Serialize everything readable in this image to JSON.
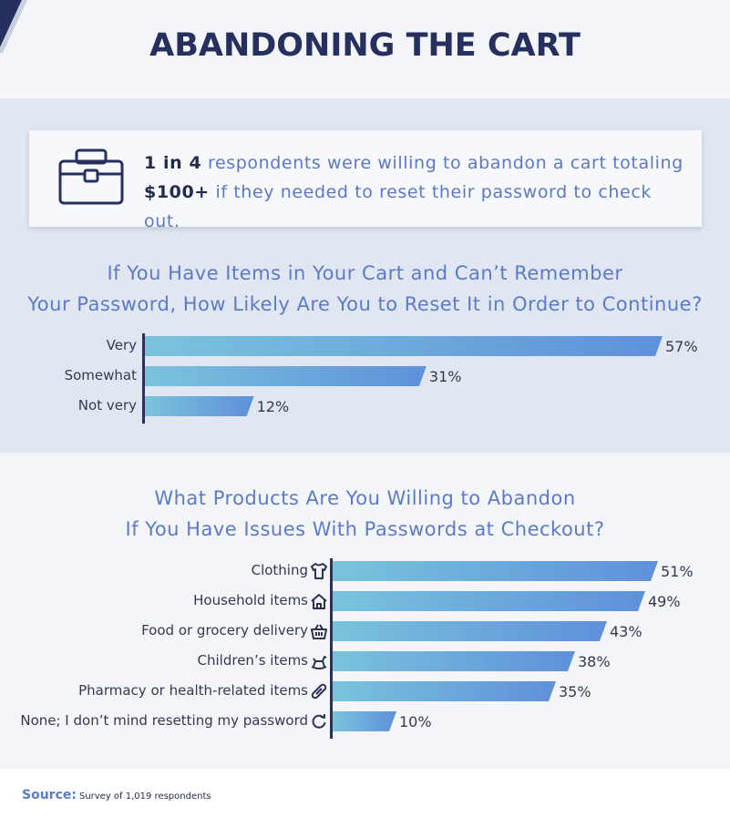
{
  "header": {
    "title": "ABANDONING THE CART",
    "accent_color": "#25305e"
  },
  "callout": {
    "icon": "briefcase-icon",
    "highlight1": "1 in 4",
    "text1": " respondents were willing to abandon a cart totaling ",
    "highlight2": "$100+",
    "text2": " if they needed to reset their password to check out."
  },
  "chart_data": [
    {
      "type": "bar",
      "orientation": "horizontal",
      "title": [
        "If You Have Items in Your Cart and Can’t Remember",
        "Your Password, How Likely Are You to Reset It in Order to Continue?"
      ],
      "categories": [
        "Very",
        "Somewhat",
        "Not very"
      ],
      "values": [
        57,
        31,
        12
      ],
      "value_labels": [
        "57%",
        "31%",
        "12%"
      ],
      "unit": "%",
      "xlim": [
        0,
        57
      ]
    },
    {
      "type": "bar",
      "orientation": "horizontal",
      "title": [
        "What Products Are You Willing to Abandon",
        "If You Have Issues With Passwords at Checkout?"
      ],
      "categories": [
        "Clothing",
        "Household items",
        "Food or grocery delivery",
        "Children’s items",
        "Pharmacy or health-related items",
        "None; I don’t mind resetting my password"
      ],
      "icons": [
        "shirt-icon",
        "house-icon",
        "basket-icon",
        "rocking-horse-icon",
        "pill-icon",
        "refresh-icon"
      ],
      "values": [
        51,
        49,
        43,
        38,
        35,
        10
      ],
      "value_labels": [
        "51%",
        "49%",
        "43%",
        "38%",
        "35%",
        "10%"
      ],
      "unit": "%",
      "xlim": [
        0,
        51
      ]
    }
  ],
  "footer": {
    "source_label": "Source:",
    "source_text": "Survey of 1,019 respondents"
  }
}
